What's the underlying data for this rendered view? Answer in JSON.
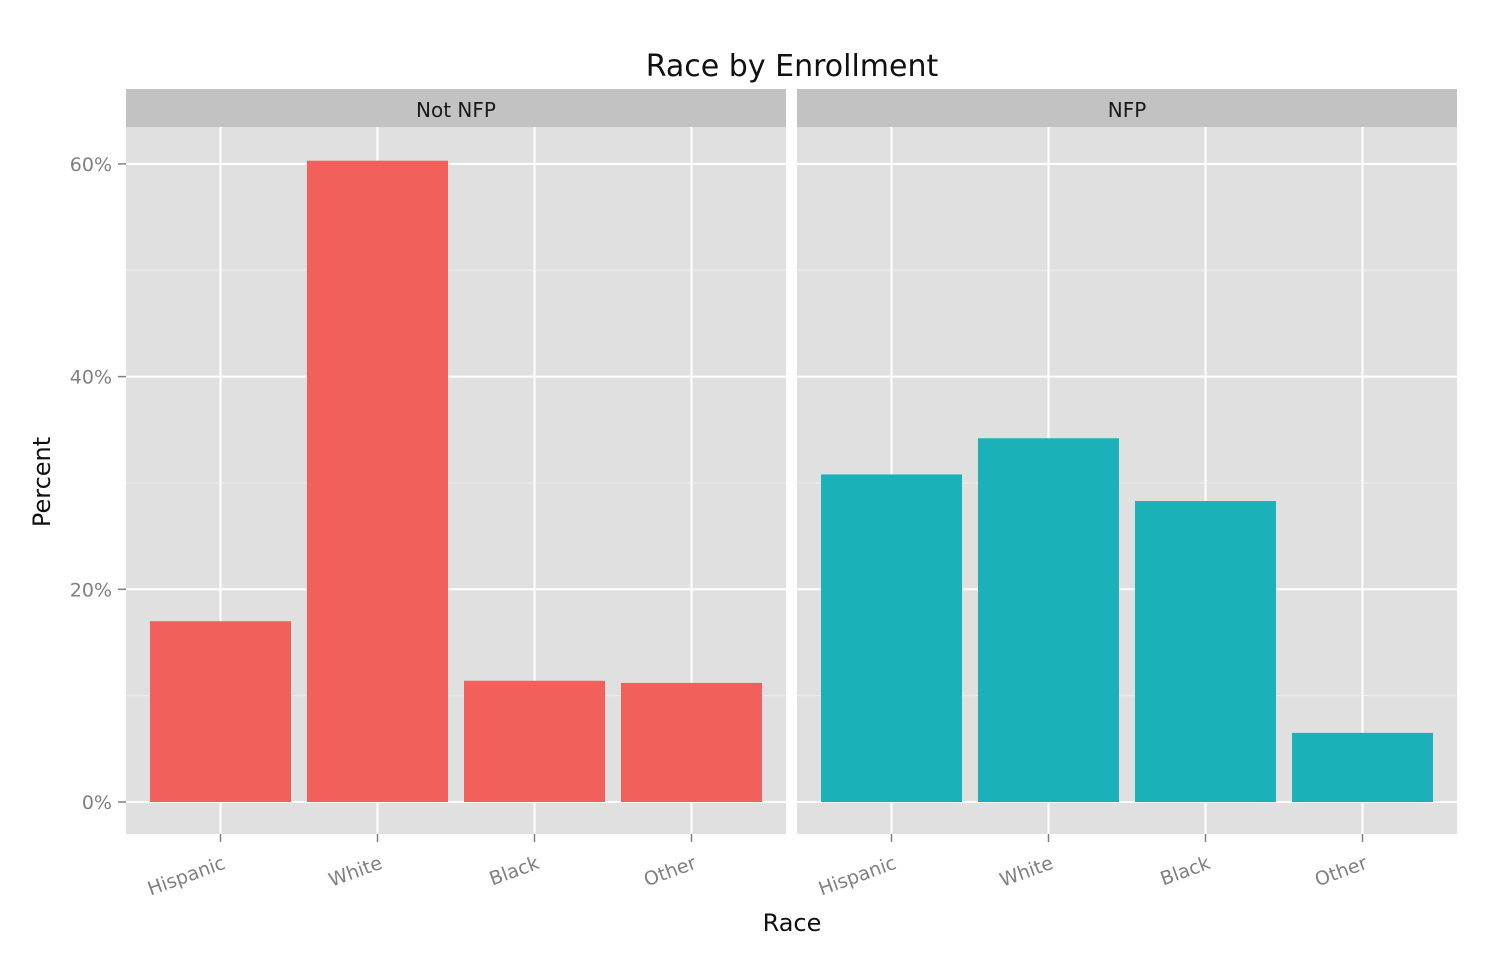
{
  "chart_data": {
    "type": "bar",
    "title": "Race by Enrollment",
    "xlabel": "Race",
    "ylabel": "Percent",
    "ylim": [
      0,
      65
    ],
    "yticks": [
      0,
      20,
      40,
      60
    ],
    "ytick_labels": [
      "0%",
      "20%",
      "40%",
      "60%"
    ],
    "categories": [
      "Hispanic",
      "White",
      "Black",
      "Other"
    ],
    "grid": true,
    "legend": "none",
    "facets": [
      {
        "label": "Not NFP",
        "color": "#F2605B",
        "values": [
          17.0,
          60.3,
          11.4,
          11.2
        ]
      },
      {
        "label": "NFP",
        "color": "#1AB2B8",
        "values": [
          30.8,
          34.2,
          28.3,
          6.5
        ]
      }
    ]
  },
  "colors": {
    "panel_background": "#E0E0E0",
    "strip_background": "#C2C2C2",
    "grid_major": "#FFFFFF",
    "grid_minor": "#EDEDED",
    "tick_text": "#808080",
    "axis_title_text": "#111111"
  }
}
